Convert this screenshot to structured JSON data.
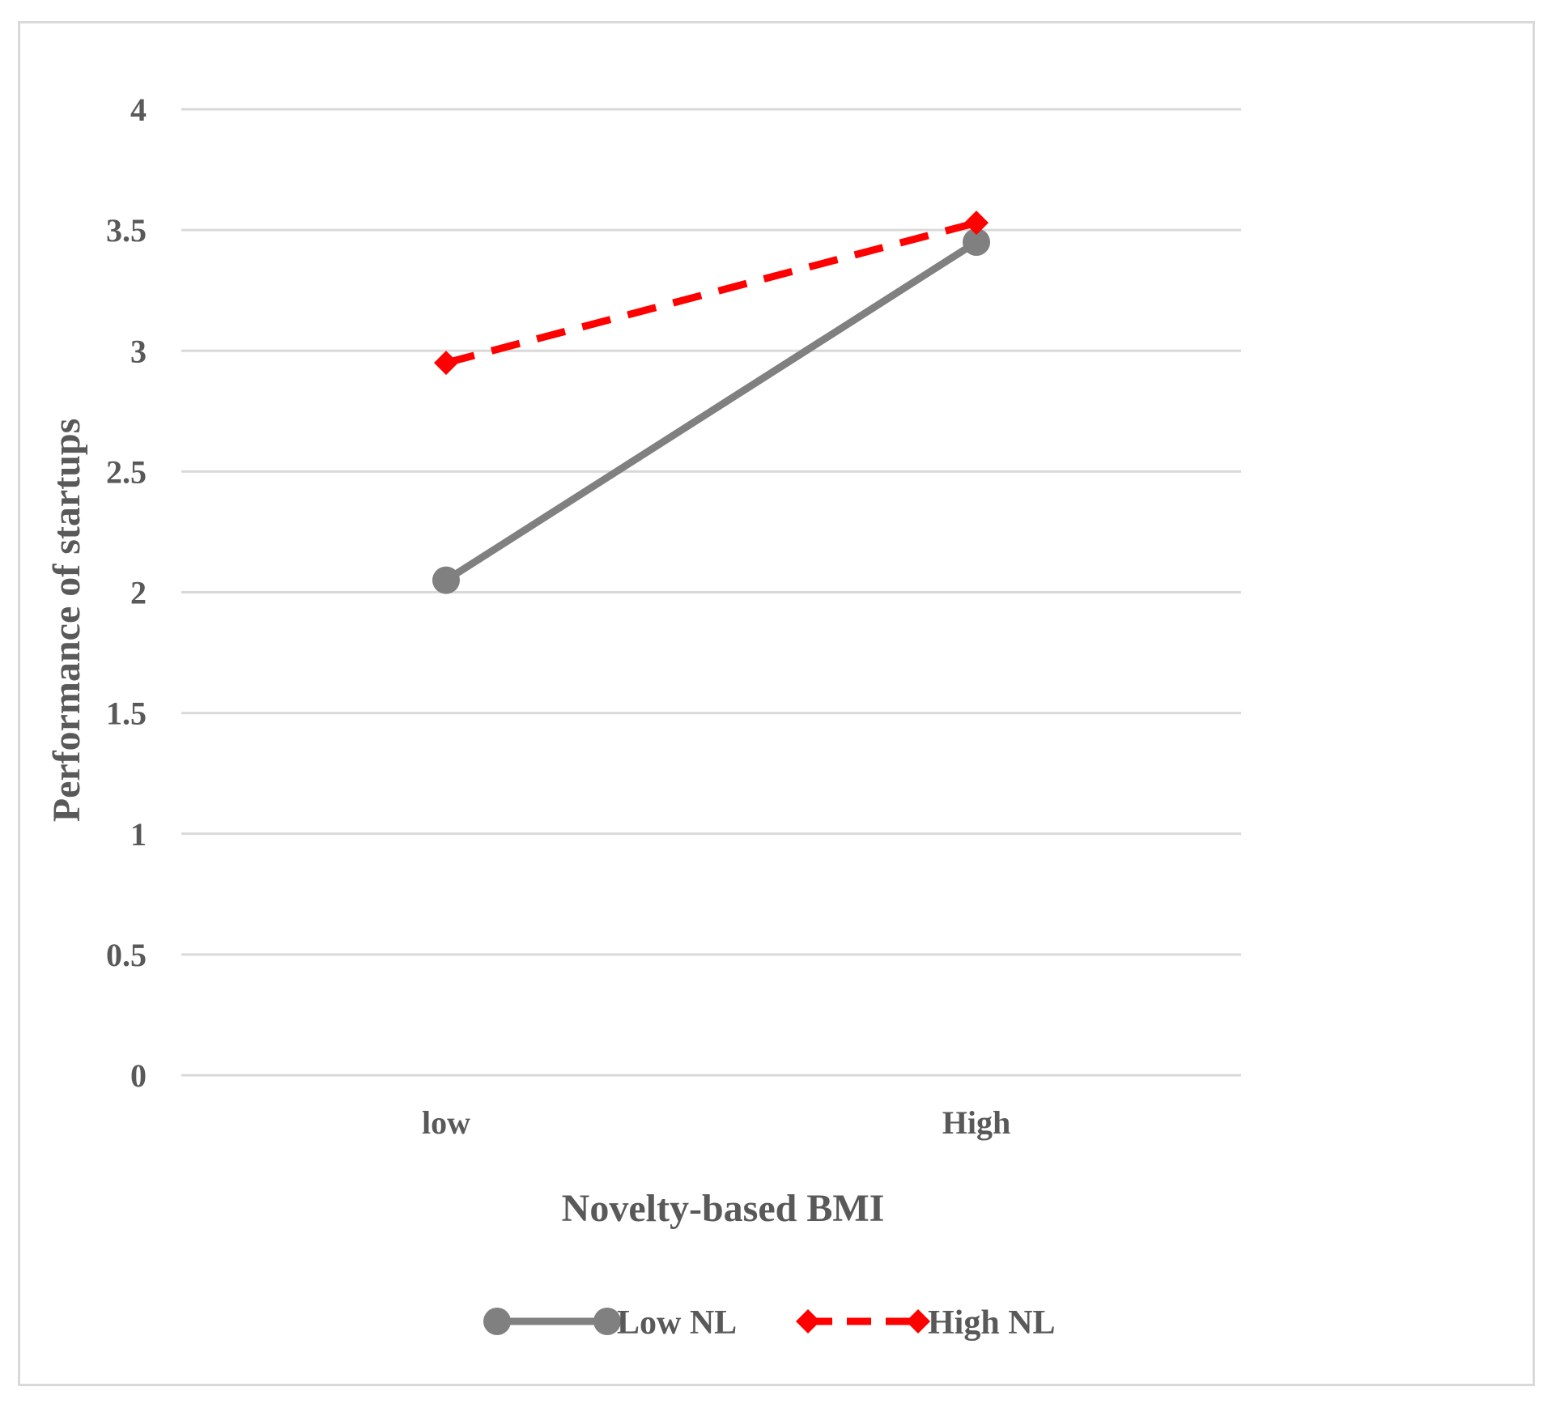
{
  "chart_data": {
    "type": "line",
    "title": "",
    "xlabel": "Novelty-based BMI",
    "ylabel": "Performance of startups",
    "categories": [
      "low",
      "High"
    ],
    "yticks": [
      "0",
      "0.5",
      "1",
      "1.5",
      "2",
      "2.5",
      "3",
      "3.5",
      "4"
    ],
    "ylim": [
      0,
      4
    ],
    "grid": true,
    "legend_position": "bottom",
    "series": [
      {
        "name": "Low NL",
        "values": [
          2.05,
          3.45
        ],
        "color": "#808080",
        "marker": "circle",
        "dash": "solid"
      },
      {
        "name": "High NL",
        "values": [
          2.95,
          3.53
        ],
        "color": "#ff0000",
        "marker": "diamond",
        "dash": "dashed"
      }
    ]
  },
  "colors": {
    "text": "#595959",
    "grid": "#d9d9d9",
    "border": "#d9d9d9"
  }
}
